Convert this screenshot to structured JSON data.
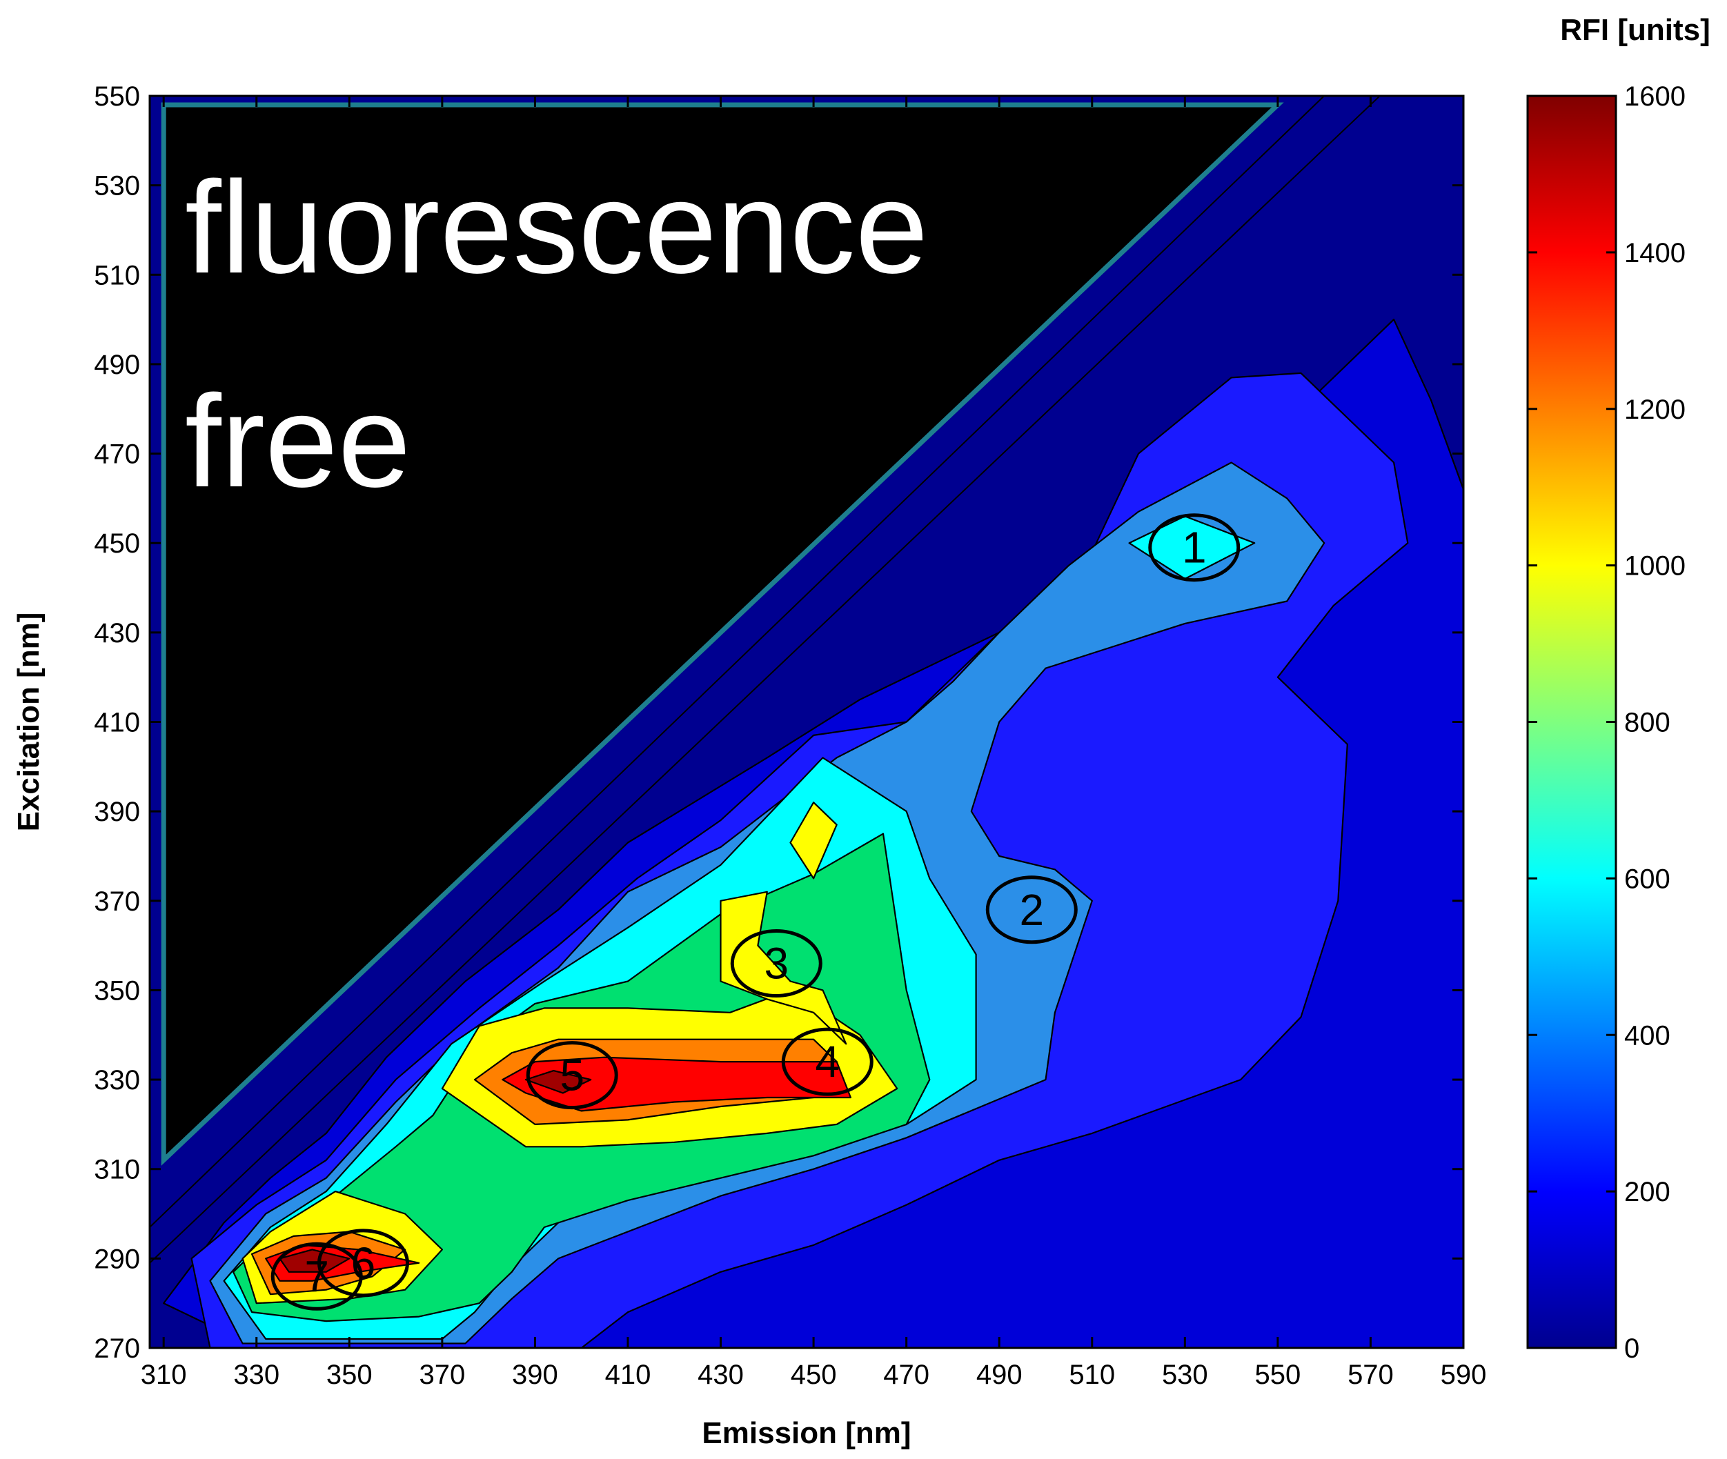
{
  "chart_data": {
    "type": "heatmap",
    "subtype": "filled contour (excitation-emission matrix)",
    "title": "",
    "xlabel": "Emission [nm]",
    "ylabel": "Excitation [nm]",
    "xlim": [
      307,
      590
    ],
    "ylim": [
      270,
      550
    ],
    "xticks": [
      "310",
      "330",
      "350",
      "370",
      "390",
      "410",
      "430",
      "450",
      "470",
      "490",
      "510",
      "530",
      "550",
      "570",
      "590"
    ],
    "yticks": [
      "270",
      "290",
      "310",
      "330",
      "350",
      "370",
      "390",
      "410",
      "430",
      "450",
      "470",
      "490",
      "510",
      "530",
      "550"
    ],
    "colorbar": {
      "label": "RFI [units]",
      "range": [
        0,
        1600
      ],
      "ticks": [
        "0",
        "200",
        "400",
        "600",
        "800",
        "1000",
        "1200",
        "1400",
        "1600"
      ],
      "colormap": "jet"
    },
    "contour_levels": [
      0,
      100,
      200,
      400,
      600,
      800,
      1000,
      1200,
      1400,
      1550
    ],
    "level_colors": [
      "#000090",
      "#0000d8",
      "#1a1aff",
      "#2b8fe8",
      "#00ffff",
      "#00e070",
      "#ffff00",
      "#ff8000",
      "#ff0000",
      "#a00000"
    ],
    "regions": [
      {
        "level": 100,
        "points": [
          [
            310,
            280
          ],
          [
            323,
            298
          ],
          [
            333,
            308
          ],
          [
            345,
            318
          ],
          [
            358,
            335
          ],
          [
            375,
            352
          ],
          [
            395,
            368
          ],
          [
            410,
            383
          ],
          [
            440,
            402
          ],
          [
            460,
            415
          ],
          [
            490,
            430
          ],
          [
            520,
            450
          ],
          [
            540,
            468
          ],
          [
            555,
            480
          ],
          [
            575,
            500
          ],
          [
            583,
            482
          ],
          [
            590,
            462
          ],
          [
            590,
            270
          ],
          [
            330,
            270
          ]
        ]
      },
      {
        "level": 200,
        "points": [
          [
            320,
            270
          ],
          [
            316,
            290
          ],
          [
            330,
            302
          ],
          [
            345,
            312
          ],
          [
            360,
            330
          ],
          [
            378,
            346
          ],
          [
            395,
            360
          ],
          [
            412,
            375
          ],
          [
            430,
            388
          ],
          [
            450,
            407
          ],
          [
            470,
            410
          ],
          [
            490,
            430
          ],
          [
            510,
            448
          ],
          [
            520,
            470
          ],
          [
            540,
            487
          ],
          [
            555,
            488
          ],
          [
            575,
            468
          ],
          [
            578,
            450
          ],
          [
            562,
            436
          ],
          [
            550,
            420
          ],
          [
            565,
            405
          ],
          [
            563,
            370
          ],
          [
            555,
            344
          ],
          [
            542,
            330
          ],
          [
            510,
            318
          ],
          [
            490,
            312
          ],
          [
            470,
            302
          ],
          [
            450,
            293
          ],
          [
            430,
            287
          ],
          [
            410,
            278
          ],
          [
            400,
            270
          ]
        ]
      },
      {
        "level": 400,
        "points": [
          [
            327,
            271
          ],
          [
            320,
            285
          ],
          [
            332,
            300
          ],
          [
            345,
            308
          ],
          [
            360,
            325
          ],
          [
            375,
            340
          ],
          [
            395,
            355
          ],
          [
            410,
            372
          ],
          [
            430,
            382
          ],
          [
            455,
            402
          ],
          [
            470,
            410
          ],
          [
            480,
            419
          ],
          [
            490,
            430
          ],
          [
            505,
            445
          ],
          [
            520,
            457
          ],
          [
            540,
            468
          ],
          [
            552,
            460
          ],
          [
            560,
            450
          ],
          [
            552,
            437
          ],
          [
            530,
            432
          ],
          [
            500,
            422
          ],
          [
            490,
            410
          ],
          [
            484,
            390
          ],
          [
            490,
            380
          ],
          [
            502,
            377
          ],
          [
            510,
            370
          ],
          [
            502,
            345
          ],
          [
            500,
            330
          ],
          [
            470,
            317
          ],
          [
            450,
            310
          ],
          [
            430,
            304
          ],
          [
            415,
            298
          ],
          [
            405,
            294
          ],
          [
            395,
            290
          ],
          [
            385,
            281
          ],
          [
            375,
            271
          ]
        ]
      },
      {
        "level": 600,
        "points": [
          [
            332,
            272
          ],
          [
            323,
            285
          ],
          [
            333,
            297
          ],
          [
            345,
            305
          ],
          [
            358,
            320
          ],
          [
            372,
            338
          ],
          [
            392,
            352
          ],
          [
            410,
            364
          ],
          [
            430,
            378
          ],
          [
            452,
            402
          ],
          [
            470,
            390
          ],
          [
            475,
            375
          ],
          [
            485,
            358
          ],
          [
            485,
            330
          ],
          [
            470,
            320
          ],
          [
            455,
            316
          ],
          [
            440,
            314
          ],
          [
            430,
            312
          ],
          [
            410,
            305
          ],
          [
            395,
            298
          ],
          [
            385,
            288
          ],
          [
            377,
            278
          ],
          [
            370,
            272
          ],
          [
            345,
            272
          ]
        ]
      },
      {
        "level": 800,
        "points": [
          [
            329,
            278
          ],
          [
            325,
            287
          ],
          [
            335,
            297
          ],
          [
            347,
            304
          ],
          [
            360,
            315
          ],
          [
            368,
            322
          ],
          [
            378,
            338
          ],
          [
            390,
            347
          ],
          [
            410,
            352
          ],
          [
            430,
            367
          ],
          [
            450,
            376
          ],
          [
            465,
            385
          ],
          [
            470,
            350
          ],
          [
            475,
            330
          ],
          [
            470,
            320
          ],
          [
            450,
            313
          ],
          [
            430,
            308
          ],
          [
            410,
            303
          ],
          [
            392,
            297
          ],
          [
            385,
            287
          ],
          [
            378,
            280
          ],
          [
            365,
            277
          ],
          [
            345,
            276
          ]
        ]
      },
      {
        "level": 1000,
        "points": [
          [
            330,
            280
          ],
          [
            327,
            290
          ],
          [
            333,
            296
          ],
          [
            347,
            305
          ],
          [
            362,
            300
          ],
          [
            370,
            292
          ],
          [
            362,
            283
          ],
          [
            350,
            281
          ]
        ]
      },
      {
        "level": 1000,
        "points": [
          [
            370,
            328
          ],
          [
            378,
            342
          ],
          [
            392,
            346
          ],
          [
            410,
            346
          ],
          [
            432,
            345
          ],
          [
            445,
            350
          ],
          [
            450,
            347
          ],
          [
            460,
            340
          ],
          [
            468,
            328
          ],
          [
            455,
            320
          ],
          [
            440,
            318
          ],
          [
            420,
            316
          ],
          [
            400,
            315
          ],
          [
            388,
            315
          ]
        ]
      },
      {
        "level": 1000,
        "points": [
          [
            440,
            372
          ],
          [
            438,
            360
          ],
          [
            445,
            352
          ],
          [
            452,
            350
          ],
          [
            457,
            338
          ],
          [
            450,
            345
          ],
          [
            440,
            348
          ],
          [
            430,
            352
          ],
          [
            430,
            370
          ]
        ]
      },
      {
        "level": 1000,
        "points": [
          [
            445,
            383
          ],
          [
            450,
            392
          ],
          [
            455,
            387
          ],
          [
            450,
            375
          ]
        ]
      },
      {
        "level": 1200,
        "points": [
          [
            333,
            282
          ],
          [
            329,
            291
          ],
          [
            338,
            295
          ],
          [
            350,
            296
          ],
          [
            362,
            292
          ],
          [
            355,
            286
          ],
          [
            345,
            283
          ]
        ]
      },
      {
        "level": 1200,
        "points": [
          [
            377,
            330
          ],
          [
            385,
            336
          ],
          [
            395,
            339
          ],
          [
            420,
            339
          ],
          [
            450,
            339
          ],
          [
            455,
            334
          ],
          [
            450,
            326
          ],
          [
            430,
            324
          ],
          [
            410,
            321
          ],
          [
            390,
            320
          ]
        ]
      },
      {
        "level": 1400,
        "points": [
          [
            335,
            285
          ],
          [
            332,
            290
          ],
          [
            340,
            293
          ],
          [
            352,
            292
          ],
          [
            365,
            289
          ],
          [
            352,
            287
          ],
          [
            342,
            285
          ]
        ]
      },
      {
        "level": 1400,
        "points": [
          [
            383,
            330
          ],
          [
            390,
            334
          ],
          [
            405,
            335
          ],
          [
            430,
            334
          ],
          [
            455,
            334
          ],
          [
            458,
            326
          ],
          [
            440,
            326
          ],
          [
            420,
            325
          ],
          [
            400,
            323
          ],
          [
            388,
            327
          ]
        ]
      },
      {
        "level": 1550,
        "points": [
          [
            337,
            287
          ],
          [
            335,
            290
          ],
          [
            342,
            292
          ],
          [
            350,
            290
          ],
          [
            345,
            287
          ]
        ]
      },
      {
        "level": 1550,
        "points": [
          [
            388,
            330
          ],
          [
            394,
            332
          ],
          [
            402,
            330
          ],
          [
            396,
            327
          ]
        ]
      },
      {
        "level": 600,
        "points": [
          [
            518,
            450
          ],
          [
            530,
            456
          ],
          [
            545,
            450
          ],
          [
            530,
            442
          ]
        ]
      }
    ],
    "fluorescence_free_region": {
      "label_line1": "fluorescence",
      "label_line2": "free",
      "vertices": [
        [
          310,
          312
        ],
        [
          310,
          548
        ],
        [
          550,
          548
        ]
      ]
    },
    "peaks": [
      {
        "label": "1",
        "emission": 532,
        "excitation": 449
      },
      {
        "label": "2",
        "emission": 497,
        "excitation": 368
      },
      {
        "label": "3",
        "emission": 442,
        "excitation": 356
      },
      {
        "label": "4",
        "emission": 453,
        "excitation": 334
      },
      {
        "label": "5",
        "emission": 398,
        "excitation": 331
      },
      {
        "label": "6",
        "emission": 353,
        "excitation": 289
      },
      {
        "label": "7",
        "emission": 343,
        "excitation": 286
      }
    ]
  }
}
